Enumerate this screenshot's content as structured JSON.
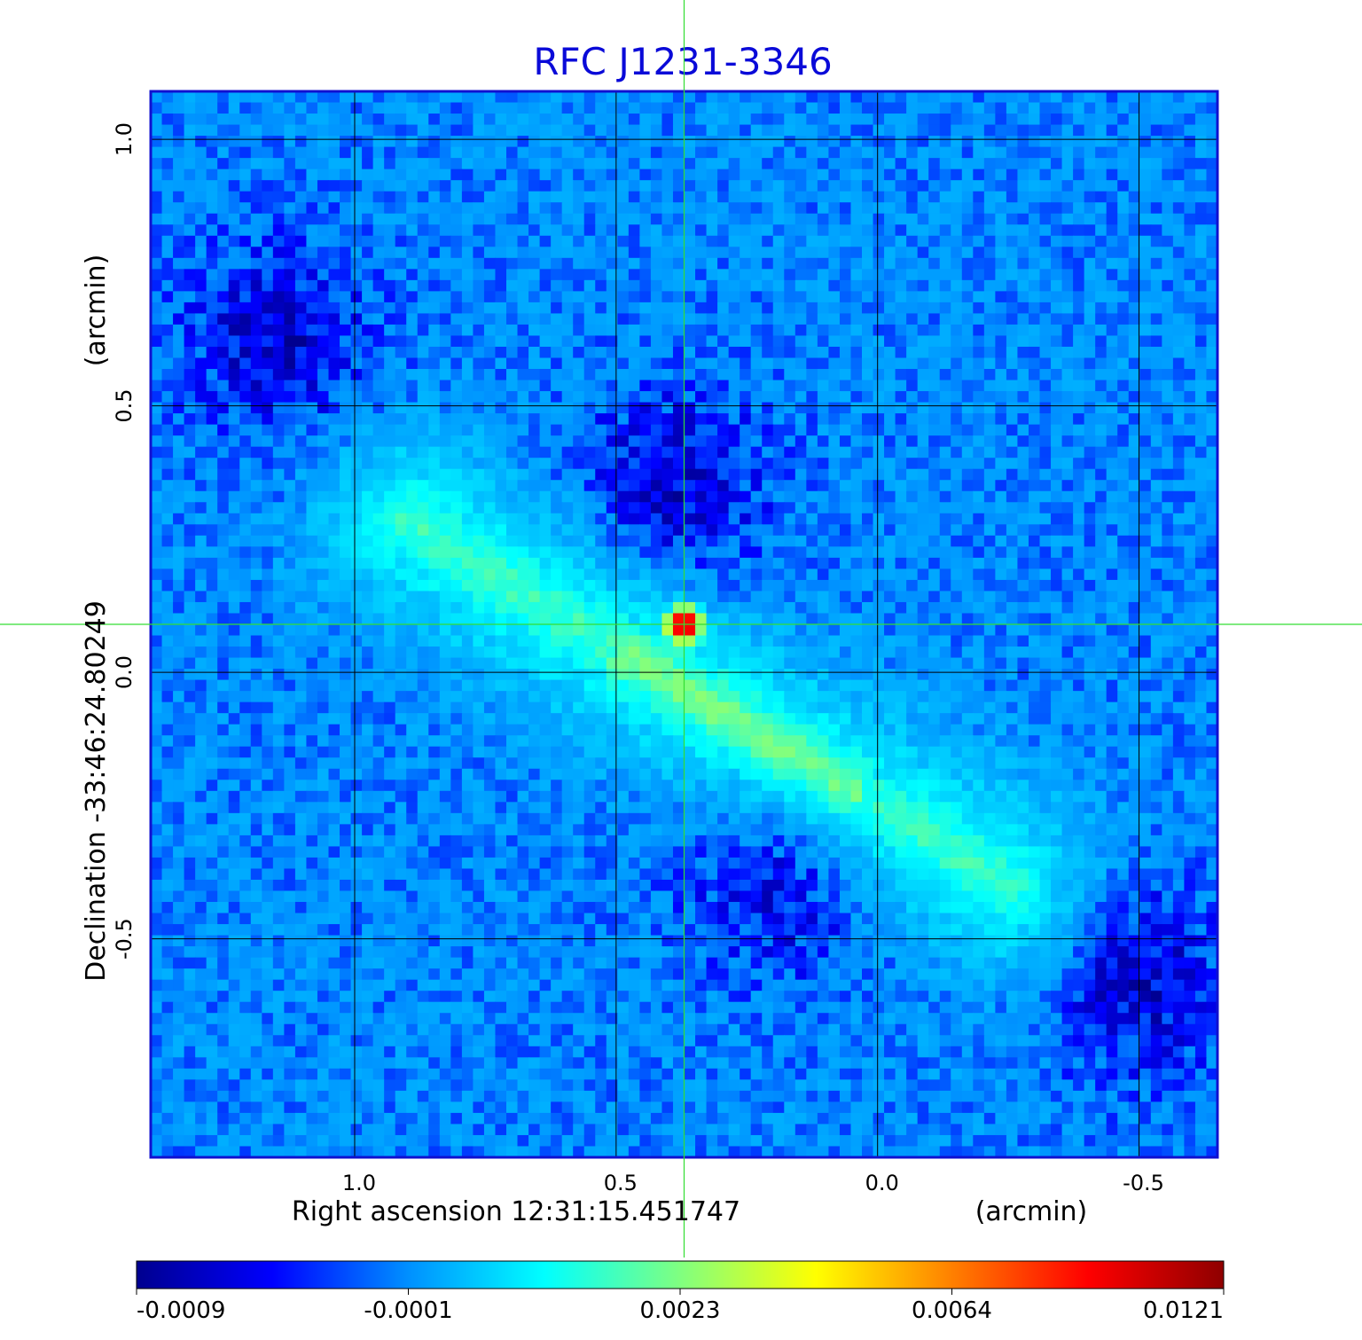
{
  "chart_data": {
    "type": "heatmap",
    "title": "RFC J1231-3346",
    "xlabel": "Right ascension  12:31:15.451747",
    "xlabel_unit": "(arcmin)",
    "ylabel": "Declination  -33:46:24.80249",
    "ylabel_unit": "(arcmin)",
    "x_ticks": [
      "1.0",
      "0.5",
      "0.0",
      "-0.5"
    ],
    "x_tick_values": [
      1.0,
      0.5,
      0.0,
      -0.5
    ],
    "y_ticks": [
      "1.0",
      "0.5",
      "0.0",
      "-0.5"
    ],
    "y_tick_values": [
      1.0,
      0.5,
      0.0,
      -0.5
    ],
    "xlim": [
      1.39,
      -0.65
    ],
    "ylim": [
      -0.91,
      1.09
    ],
    "grid": true,
    "crosshair": {
      "x": 0.37,
      "y": 0.09,
      "color": "#33dd33"
    },
    "colorbar": {
      "position": "bottom",
      "ticks": [
        "-0.0009",
        "-0.0001",
        "0.0023",
        "0.0064",
        "0.0121"
      ],
      "colors": [
        "#00008f",
        "#0000ff",
        "#0090ff",
        "#00ffff",
        "#80ff80",
        "#ffff00",
        "#ff8000",
        "#ff0000",
        "#8f0000"
      ]
    },
    "features": [
      {
        "kind": "core",
        "x": 0.37,
        "y": 0.09,
        "peak": 0.0121
      },
      {
        "kind": "jet",
        "from": [
          0.9,
          0.28
        ],
        "to": [
          -0.25,
          -0.4
        ],
        "level": 0.002
      },
      {
        "kind": "negative-lobe",
        "center": [
          0.39,
          0.35
        ],
        "level": -0.0009
      },
      {
        "kind": "negative-lobe",
        "center": [
          0.18,
          -0.38
        ],
        "level": -0.0009
      },
      {
        "kind": "negative-lobe",
        "center": [
          -0.5,
          -0.58
        ],
        "level": -0.0009
      },
      {
        "kind": "negative-lobe",
        "center": [
          1.15,
          0.62
        ],
        "level": -0.0009
      }
    ],
    "colors": {
      "frame": "#1010d0",
      "grid": "#000000",
      "title": "#0a0ad8"
    }
  }
}
